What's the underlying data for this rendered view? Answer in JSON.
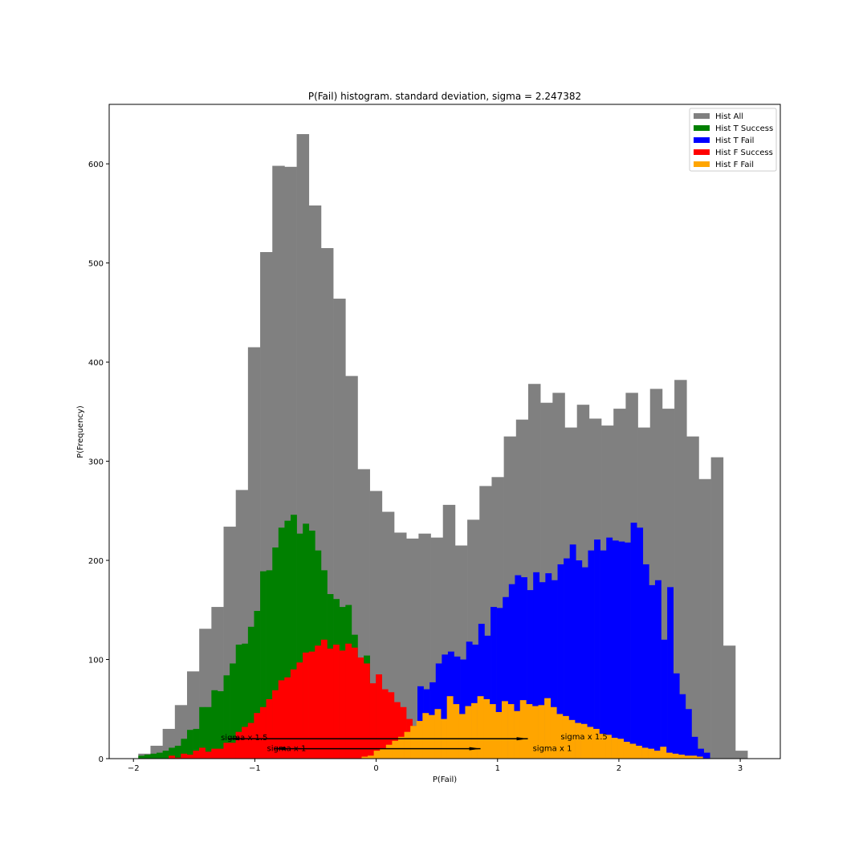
{
  "chart_data": {
    "type": "bar",
    "title": "P(Fail) histogram. standard deviation, sigma = 2.247382",
    "xlabel": "P(Fail)",
    "ylabel": "P(Frequency)",
    "xlim": [
      -2.2,
      3.33
    ],
    "ylim": [
      0,
      660
    ],
    "xticks": [
      -2,
      -1,
      0,
      1,
      2,
      3
    ],
    "yticks": [
      0,
      100,
      200,
      300,
      400,
      500,
      600
    ],
    "legend_position": "top-right",
    "series": [
      {
        "name": "Hist All",
        "color": "#808080",
        "bin_start": -1.96,
        "bin_width": 0.1004,
        "values": [
          5,
          13,
          30,
          54,
          88,
          131,
          153,
          234,
          271,
          415,
          511,
          598,
          597,
          630,
          558,
          515,
          464,
          386,
          292,
          270,
          249,
          228,
          222,
          227,
          223,
          256,
          215,
          241,
          275,
          284,
          325,
          342,
          378,
          359,
          369,
          334,
          357,
          343,
          336,
          353,
          369,
          334,
          373,
          353,
          382,
          325,
          282,
          304,
          114,
          8
        ]
      },
      {
        "name": "Hist T Success",
        "color": "#008000",
        "bin_start": -1.96,
        "bin_width": 0.0502,
        "values": [
          3,
          4,
          5,
          6,
          8,
          11,
          13,
          20,
          29,
          30,
          52,
          52,
          69,
          68,
          84,
          96,
          115,
          116,
          133,
          149,
          189,
          190,
          213,
          233,
          240,
          246,
          227,
          237,
          230,
          210,
          190,
          166,
          161,
          153,
          155,
          125,
          100,
          104,
          75,
          52,
          40,
          28,
          20,
          15,
          8,
          5,
          3,
          2,
          1,
          1
        ]
      },
      {
        "name": "Hist T Fail",
        "color": "#0000ff",
        "bin_start": 0.34,
        "bin_width": 0.0502,
        "values": [
          73,
          70,
          77,
          96,
          105,
          108,
          103,
          100,
          118,
          115,
          136,
          124,
          153,
          152,
          163,
          176,
          185,
          183,
          170,
          188,
          178,
          187,
          180,
          196,
          202,
          216,
          200,
          193,
          210,
          221,
          210,
          223,
          220,
          219,
          218,
          238,
          233,
          196,
          175,
          180,
          120,
          173,
          86,
          65,
          50,
          22,
          10,
          6
        ]
      },
      {
        "name": "Hist F Success",
        "color": "#ff0000",
        "bin_start": -1.76,
        "bin_width": 0.0502,
        "values": [
          0,
          3,
          1,
          5,
          4,
          8,
          11,
          7,
          10,
          10,
          16,
          16,
          27,
          32,
          36,
          46,
          52,
          60,
          69,
          79,
          82,
          90,
          97,
          107,
          108,
          114,
          120,
          111,
          115,
          109,
          116,
          112,
          102,
          96,
          76,
          85,
          70,
          67,
          57,
          52,
          40,
          33,
          25,
          20,
          15,
          10,
          5
        ]
      },
      {
        "name": "Hist F Fail",
        "color": "#ffa500",
        "bin_start": -0.12,
        "bin_width": 0.0502,
        "values": [
          2,
          3,
          8,
          10,
          14,
          18,
          22,
          27,
          33,
          38,
          46,
          44,
          50,
          40,
          63,
          55,
          45,
          53,
          56,
          63,
          60,
          55,
          47,
          58,
          55,
          48,
          59,
          55,
          53,
          54,
          61,
          52,
          45,
          43,
          39,
          36,
          35,
          32,
          30,
          25,
          24,
          21,
          20,
          17,
          15,
          13,
          11,
          10,
          8,
          12,
          6,
          5,
          4,
          3,
          3,
          2
        ]
      }
    ],
    "annotations": [
      {
        "text": "sigma x 1.5",
        "x": -1.28,
        "y": 21
      },
      {
        "text": "sigma x 1",
        "x": -0.9,
        "y": 10
      },
      {
        "text": "sigma x 1.5",
        "x": 1.52,
        "y": 22
      },
      {
        "text": "sigma x 1",
        "x": 1.29,
        "y": 10
      }
    ],
    "arrows": [
      {
        "x_start": -1.22,
        "x_end": 1.25,
        "y": 20,
        "direction": "both"
      },
      {
        "x_start": -0.84,
        "x_end": 0.86,
        "y": 10,
        "direction": "both"
      }
    ]
  }
}
